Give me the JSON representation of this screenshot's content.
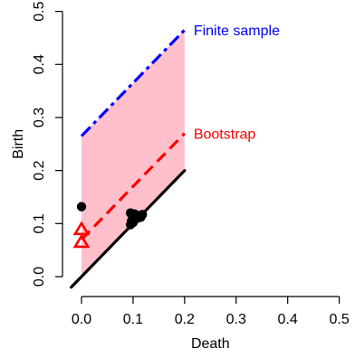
{
  "chart_data": {
    "type": "scatter",
    "title": "",
    "xlabel": "Death",
    "ylabel": "Birth",
    "xlim": [
      -0.02,
      0.5
    ],
    "ylim": [
      -0.02,
      0.5
    ],
    "x_ticks": [
      "0.0",
      "0.1",
      "0.2",
      "0.3",
      "0.4",
      "0.5"
    ],
    "y_ticks": [
      "0.0",
      "0.1",
      "0.2",
      "0.3",
      "0.4",
      "0.5"
    ],
    "grid": false,
    "diagonal": {
      "x": [
        -0.02,
        0.2
      ],
      "y": [
        -0.02,
        0.2
      ],
      "color": "#000000"
    },
    "confidence_band": {
      "x_range": [
        0.0,
        0.2
      ],
      "upper_offset": 0.265,
      "color": "#ffc0cb"
    },
    "series": [
      {
        "name": "Finite sample",
        "kind": "line",
        "line_style": "dashdot",
        "color": "#0000ff",
        "x": [
          0.0,
          0.2
        ],
        "y": [
          0.265,
          0.465
        ]
      },
      {
        "name": "Bootstrap",
        "kind": "line",
        "line_style": "dashed",
        "color": "#ff0000",
        "x": [
          0.0,
          0.2
        ],
        "y": [
          0.07,
          0.27
        ]
      },
      {
        "kind": "points",
        "marker": "filled-circle",
        "color": "#000000",
        "points": [
          {
            "x": 0.0,
            "y": 0.132
          },
          {
            "x": 0.095,
            "y": 0.12
          },
          {
            "x": 0.103,
            "y": 0.118
          },
          {
            "x": 0.11,
            "y": 0.115
          },
          {
            "x": 0.118,
            "y": 0.117
          },
          {
            "x": 0.1,
            "y": 0.112
          },
          {
            "x": 0.108,
            "y": 0.11
          },
          {
            "x": 0.097,
            "y": 0.105
          },
          {
            "x": 0.115,
            "y": 0.112
          },
          {
            "x": 0.095,
            "y": 0.098
          },
          {
            "x": 0.1,
            "y": 0.102
          }
        ]
      },
      {
        "kind": "points",
        "marker": "open-triangle",
        "color": "#ff0000",
        "points": [
          {
            "x": 0.0,
            "y": 0.088
          },
          {
            "x": 0.0,
            "y": 0.064
          }
        ]
      }
    ]
  }
}
